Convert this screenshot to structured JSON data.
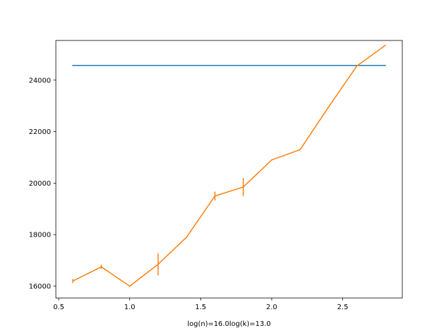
{
  "chart_data": {
    "type": "line",
    "title": "",
    "xlabel": "log(n)=16.0log(k)=13.0",
    "ylabel": "",
    "xlim": [
      0.48,
      2.92
    ],
    "ylim": [
      15540,
      25540
    ],
    "xticks": [
      0.5,
      1.0,
      1.5,
      2.0,
      2.5
    ],
    "xtick_labels": [
      "0.5",
      "1.0",
      "1.5",
      "2.0",
      "2.5"
    ],
    "yticks": [
      16000,
      18000,
      20000,
      22000,
      24000
    ],
    "ytick_labels": [
      "16000",
      "18000",
      "20000",
      "22000",
      "24000"
    ],
    "grid": false,
    "series": [
      {
        "color": "#1f77b4",
        "x": [
          0.6,
          2.8
        ],
        "y": [
          24570,
          24570
        ]
      },
      {
        "color": "#ff7f0e",
        "x": [
          0.6,
          0.8,
          1.0,
          1.2,
          1.4,
          1.6,
          1.8,
          2.0,
          2.2,
          2.4,
          2.6,
          2.8
        ],
        "y": [
          16200,
          16750,
          16000,
          16850,
          17900,
          19500,
          19850,
          20900,
          21300,
          22950,
          24550,
          25350
        ],
        "yerr": [
          80,
          80,
          0,
          430,
          0,
          170,
          350,
          0,
          0,
          0,
          0,
          0
        ]
      }
    ]
  }
}
